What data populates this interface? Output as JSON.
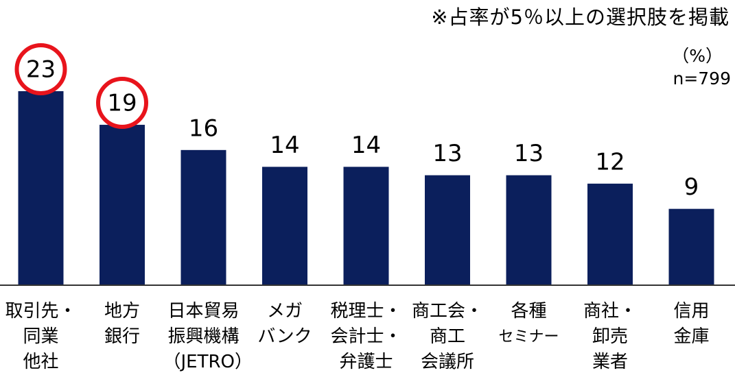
{
  "note": "※占率が5％以上の選択肢を掲載",
  "unit": "（%）",
  "n_label": "n=799",
  "colors": {
    "bar": "#0b1f5c",
    "highlight": "#e8141c",
    "axis": "#333333"
  },
  "chart_data": {
    "type": "bar",
    "title": "",
    "xlabel": "",
    "ylabel": "",
    "ylim": [
      0,
      25
    ],
    "grid": false,
    "categories": [
      [
        "取引先・",
        "同業",
        "他社"
      ],
      [
        "地方",
        "銀行"
      ],
      [
        "日本貿易",
        "振興機構",
        "（JETRO）"
      ],
      [
        "メガ",
        "バンク"
      ],
      [
        "税理士・",
        "会計士・",
        "弁護士"
      ],
      [
        "商工会・",
        "商工",
        "会議所"
      ],
      [
        "各種",
        "セミナー"
      ],
      [
        "商社・",
        "卸売",
        "業者"
      ],
      [
        "信用",
        "金庫"
      ]
    ],
    "values": [
      23,
      19,
      16,
      14,
      14,
      13,
      13,
      12,
      9
    ],
    "data_labels": [
      "23",
      "19",
      "16",
      "14",
      "14",
      "13",
      "13",
      "12",
      "9"
    ],
    "highlighted": [
      0,
      1
    ]
  }
}
